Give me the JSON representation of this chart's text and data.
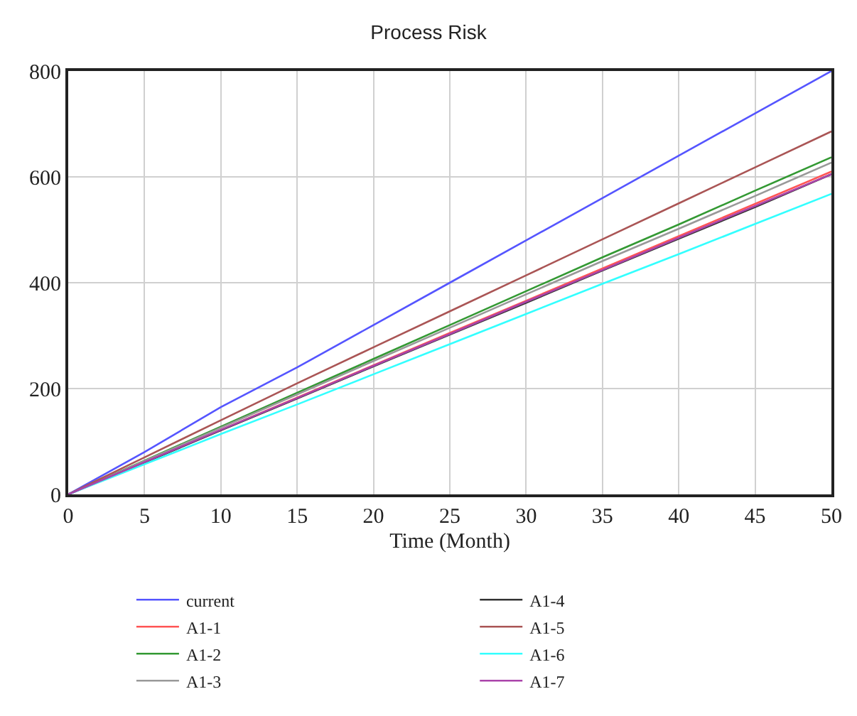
{
  "chart_data": {
    "type": "line",
    "title": "Process Risk",
    "xlabel": "Time (Month)",
    "x": [
      0,
      5,
      10,
      15,
      20,
      25,
      30,
      35,
      40,
      45,
      50
    ],
    "xlim": [
      0,
      50
    ],
    "xticks": [
      0,
      5,
      10,
      15,
      20,
      25,
      30,
      35,
      40,
      45,
      50
    ],
    "ylim": [
      0,
      800
    ],
    "yticks": [
      0,
      200,
      400,
      600,
      800
    ],
    "grid": true,
    "legend": "bottom",
    "marker": "none",
    "line_style": "solid",
    "series": [
      {
        "name": "current",
        "color": "#5555ff",
        "values": [
          0,
          80,
          165,
          240,
          320,
          400,
          480,
          560,
          640,
          720,
          800
        ]
      },
      {
        "name": "A1-1",
        "color": "#ff5555",
        "values": [
          0,
          61,
          122,
          183,
          244,
          305,
          366,
          427,
          488,
          549,
          610
        ]
      },
      {
        "name": "A1-2",
        "color": "#339933",
        "values": [
          0,
          64,
          128,
          192,
          256,
          320,
          384,
          448,
          510,
          574,
          637
        ]
      },
      {
        "name": "A1-3",
        "color": "#999999",
        "values": [
          0,
          63,
          126,
          189,
          252,
          315,
          378,
          441,
          502,
          564,
          627
        ]
      },
      {
        "name": "A1-4",
        "color": "#333333",
        "values": [
          0,
          60,
          121,
          181,
          242,
          302,
          362,
          423,
          483,
          543,
          605
        ]
      },
      {
        "name": "A1-5",
        "color": "#aa5555",
        "values": [
          0,
          70,
          140,
          210,
          278,
          346,
          414,
          482,
          550,
          618,
          686
        ]
      },
      {
        "name": "A1-6",
        "color": "#33ffff",
        "values": [
          0,
          57,
          114,
          170,
          227,
          284,
          341,
          398,
          454,
          511,
          568
        ]
      },
      {
        "name": "A1-7",
        "color": "#aa44aa",
        "values": [
          0,
          61,
          122,
          182,
          243,
          303,
          364,
          424,
          485,
          545,
          605
        ]
      }
    ]
  }
}
